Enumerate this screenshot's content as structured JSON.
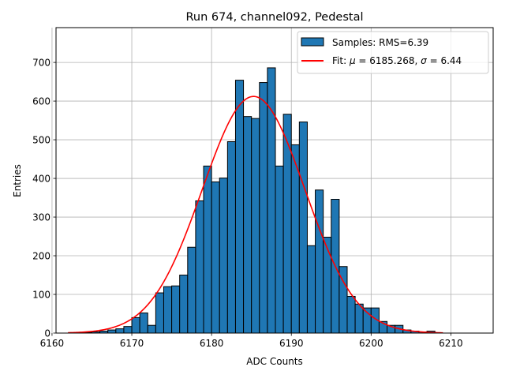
{
  "chart_data": {
    "type": "bar",
    "title": "Run 674, channel092, Pedestal",
    "xlabel": "ADC Counts",
    "ylabel": "Entries",
    "xlim": [
      6160.5,
      6215.3
    ],
    "ylim": [
      0,
      790
    ],
    "xticks": [
      6160,
      6170,
      6180,
      6190,
      6200,
      6210
    ],
    "yticks": [
      0,
      100,
      200,
      300,
      400,
      500,
      600,
      700
    ],
    "grid": true,
    "legend_position": "top-right",
    "bin_width": 1,
    "histogram": {
      "name": "Samples: RMS=6.39",
      "color": "#1f77b4",
      "edge_color": "#000000",
      "bin_starts": [
        6164,
        6165,
        6166,
        6167,
        6168,
        6169,
        6170,
        6171,
        6172,
        6173,
        6174,
        6175,
        6176,
        6177,
        6178,
        6179,
        6180,
        6181,
        6182,
        6183,
        6184,
        6185,
        6186,
        6187,
        6188,
        6189,
        6190,
        6191,
        6192,
        6193,
        6194,
        6195,
        6196,
        6197,
        6198,
        6199,
        6200,
        6201,
        6202,
        6203,
        6204,
        6205,
        6206,
        6207
      ],
      "values": [
        2,
        3,
        5,
        8,
        11,
        17,
        40,
        52,
        20,
        104,
        120,
        122,
        150,
        222,
        342,
        432,
        391,
        401,
        495,
        654,
        560,
        555,
        648,
        686,
        432,
        566,
        487,
        546,
        226,
        370,
        248,
        346,
        172,
        95,
        75,
        65,
        65,
        30,
        20,
        20,
        8,
        5,
        3,
        5
      ]
    },
    "fit": {
      "name": "Fit: μ = 6185.268, σ = 6.44",
      "label_prefix": "Fit: ",
      "mu_symbol": "μ",
      "mu_text": " = 6185.268, ",
      "sigma_symbol": "σ",
      "sigma_text": " = 6.44",
      "color": "#ff0000",
      "mu": 6185.268,
      "sigma": 6.44,
      "amplitude": 612,
      "x_range": [
        6162,
        6209
      ]
    }
  }
}
